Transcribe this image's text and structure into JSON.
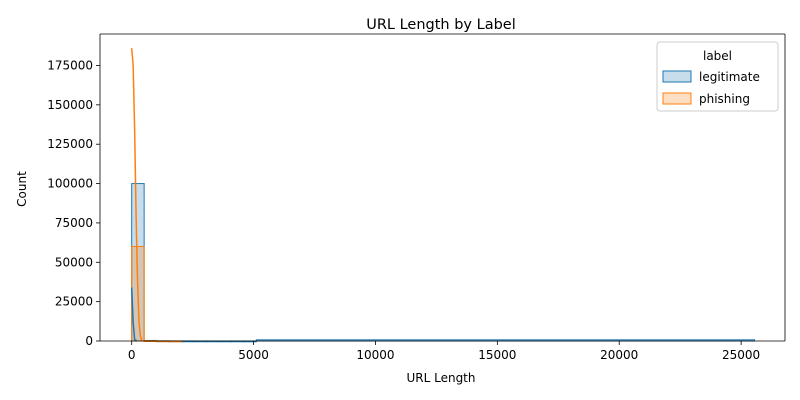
{
  "chart_data": {
    "type": "histogram",
    "title": "URL Length by Label",
    "xlabel": "URL Length",
    "ylabel": "Count",
    "xlim": [
      -1300,
      26800
    ],
    "ylim": [
      0,
      195000
    ],
    "x_ticks": [
      0,
      5000,
      10000,
      15000,
      20000,
      25000
    ],
    "x_tick_labels": [
      "0",
      "5000",
      "10000",
      "15000",
      "20000",
      "25000"
    ],
    "y_ticks": [
      0,
      25000,
      50000,
      75000,
      100000,
      125000,
      150000,
      175000
    ],
    "y_tick_labels": [
      "0",
      "25000",
      "50000",
      "75000",
      "100000",
      "125000",
      "150000",
      "175000"
    ],
    "bin_width": 511,
    "grid": false,
    "legend": {
      "title": "label",
      "placement": "top-right",
      "entries": [
        {
          "name": "legitimate",
          "color": "#1f77b4"
        },
        {
          "name": "phishing",
          "color": "#ff7f0e"
        }
      ]
    },
    "series": [
      {
        "name": "legitimate",
        "color": "#1f77b4",
        "bins": [
          [
            0,
            100000
          ],
          [
            511,
            350
          ],
          [
            1022,
            120
          ],
          [
            1533,
            60
          ],
          [
            2044,
            30
          ],
          [
            2555,
            20
          ],
          [
            3066,
            12
          ],
          [
            3577,
            8
          ],
          [
            4088,
            5
          ],
          [
            4599,
            4
          ]
        ],
        "tail_end": 25550,
        "kde": [
          [
            0,
            34000
          ],
          [
            60,
            12000
          ],
          [
            120,
            1000
          ],
          [
            200,
            0
          ]
        ]
      },
      {
        "name": "phishing",
        "color": "#ff7f0e",
        "bins": [
          [
            0,
            60000
          ],
          [
            511,
            200
          ],
          [
            1022,
            60
          ],
          [
            1533,
            20
          ]
        ],
        "tail_end": 2000,
        "kde": [
          [
            0,
            186000
          ],
          [
            60,
            175000
          ],
          [
            120,
            135000
          ],
          [
            180,
            80000
          ],
          [
            240,
            38000
          ],
          [
            300,
            12000
          ],
          [
            360,
            3000
          ],
          [
            420,
            0
          ]
        ]
      }
    ]
  }
}
